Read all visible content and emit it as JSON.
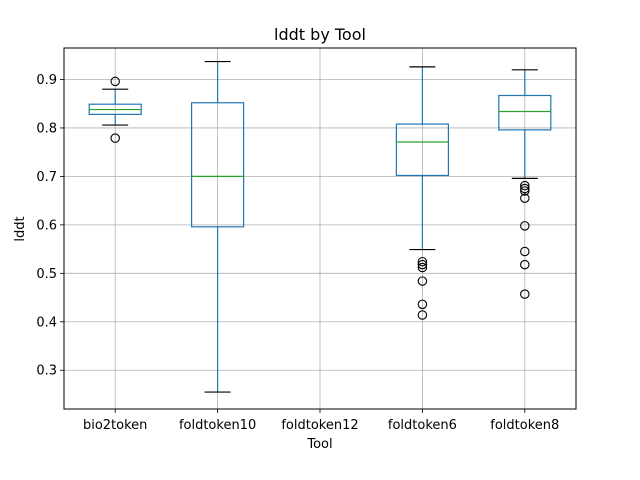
{
  "chart_data": {
    "type": "box",
    "title": "lddt by Tool",
    "xlabel": "Tool",
    "ylabel": "lddt",
    "ylim": [
      0.22,
      0.965
    ],
    "yticks": [
      0.3,
      0.4,
      0.5,
      0.6,
      0.7,
      0.8,
      0.9
    ],
    "ytick_labels": [
      "0.3",
      "0.4",
      "0.5",
      "0.6",
      "0.7",
      "0.8",
      "0.9"
    ],
    "grid": true,
    "colors": {
      "box": "#1f77b4",
      "median": "#2ca02c",
      "cap": "#000000",
      "flier": "#000000",
      "grid": "#b0b0b0"
    },
    "categories": [
      "bio2token",
      "foldtoken10",
      "foldtoken12",
      "foldtoken6",
      "foldtoken8"
    ],
    "boxes": [
      {
        "category": "bio2token",
        "whisker_low": 0.806,
        "q1": 0.828,
        "median": 0.838,
        "q3": 0.849,
        "whisker_high": 0.88,
        "fliers": [
          0.896,
          0.779
        ]
      },
      {
        "category": "foldtoken10",
        "whisker_low": 0.255,
        "q1": 0.596,
        "median": 0.7,
        "q3": 0.852,
        "whisker_high": 0.937,
        "fliers": []
      },
      {
        "category": "foldtoken12",
        "empty": true
      },
      {
        "category": "foldtoken6",
        "whisker_low": 0.549,
        "q1": 0.702,
        "median": 0.771,
        "q3": 0.808,
        "whisker_high": 0.926,
        "fliers": [
          0.524,
          0.518,
          0.512,
          0.484,
          0.436,
          0.414
        ]
      },
      {
        "category": "foldtoken8",
        "whisker_low": 0.696,
        "q1": 0.796,
        "median": 0.834,
        "q3": 0.867,
        "whisker_high": 0.92,
        "fliers": [
          0.681,
          0.675,
          0.67,
          0.655,
          0.598,
          0.545,
          0.518,
          0.457
        ]
      }
    ]
  }
}
